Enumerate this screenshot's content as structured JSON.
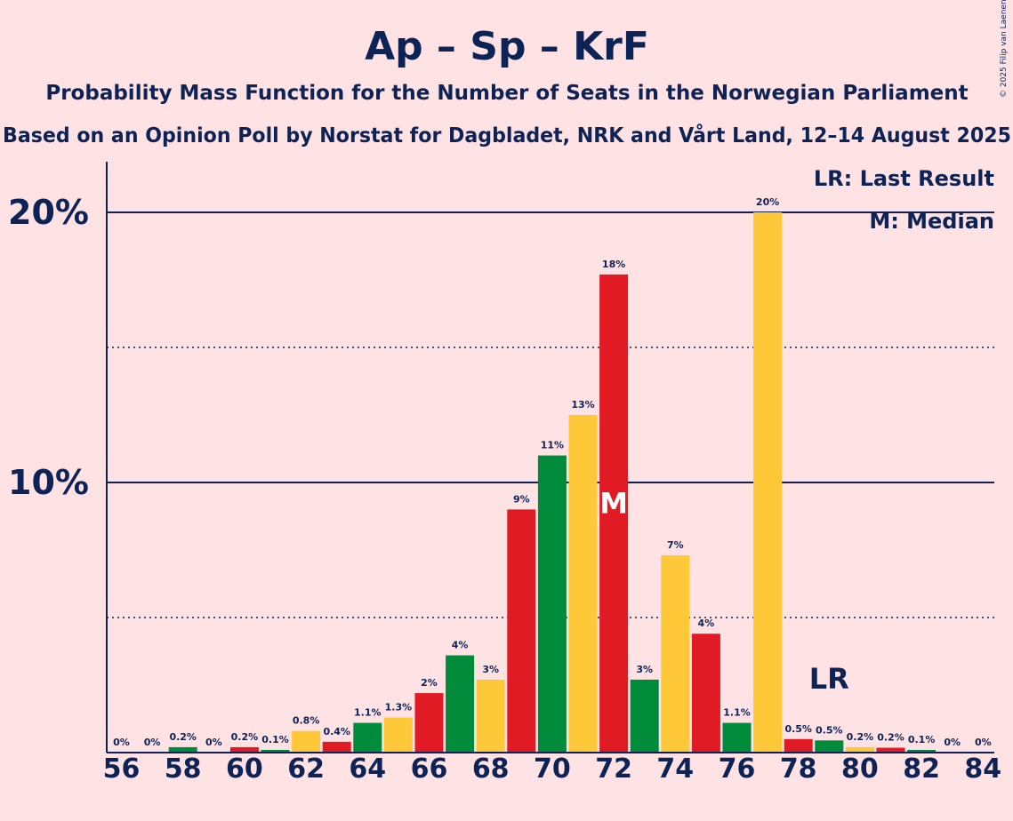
{
  "chart_data": {
    "type": "bar",
    "title": "Ap – Sp – KrF",
    "subtitle_1": "Probability Mass Function for the Number of Seats in the Norwegian Parliament",
    "subtitle_2": "Based on an Opinion Poll by Norstat for Dagbladet, NRK and Vårt Land, 12–14 August 2025",
    "legend": {
      "lr": "LR: Last Result",
      "median": "M: Median",
      "position": "top-right"
    },
    "copyright": "© 2025 Filip van Laenen",
    "xlabel": "",
    "ylabel": "",
    "ylim": [
      0,
      22
    ],
    "y_ticks": [
      {
        "value": 10,
        "label": "10%"
      },
      {
        "value": 20,
        "label": "20%"
      }
    ],
    "y_dotted": [
      5,
      15
    ],
    "x_tick_labels": [
      "56",
      "58",
      "60",
      "62",
      "64",
      "66",
      "68",
      "70",
      "72",
      "74",
      "76",
      "78",
      "80",
      "82",
      "84"
    ],
    "x_tick_values": [
      56,
      58,
      60,
      62,
      64,
      66,
      68,
      70,
      72,
      74,
      76,
      78,
      80,
      82,
      84
    ],
    "median_seat": 72,
    "median_marker": "M",
    "last_result_seat": 79,
    "last_result_marker": "LR",
    "bars": [
      {
        "seat": 56,
        "value": 0.0,
        "label": "0%"
      },
      {
        "seat": 57,
        "value": 0.0,
        "label": "0%"
      },
      {
        "seat": 58,
        "value": 0.2,
        "label": "0.2%"
      },
      {
        "seat": 59,
        "value": 0.0,
        "label": "0%"
      },
      {
        "seat": 60,
        "value": 0.2,
        "label": "0.2%"
      },
      {
        "seat": 61,
        "value": 0.1,
        "label": "0.1%"
      },
      {
        "seat": 62,
        "value": 0.8,
        "label": "0.8%"
      },
      {
        "seat": 63,
        "value": 0.4,
        "label": "0.4%"
      },
      {
        "seat": 64,
        "value": 1.1,
        "label": "1.1%"
      },
      {
        "seat": 65,
        "value": 1.3,
        "label": "1.3%"
      },
      {
        "seat": 66,
        "value": 2.2,
        "label": "2%"
      },
      {
        "seat": 67,
        "value": 3.6,
        "label": "4%"
      },
      {
        "seat": 68,
        "value": 2.7,
        "label": "3%"
      },
      {
        "seat": 69,
        "value": 9.0,
        "label": "9%"
      },
      {
        "seat": 70,
        "value": 11.0,
        "label": "11%"
      },
      {
        "seat": 71,
        "value": 12.5,
        "label": "13%"
      },
      {
        "seat": 72,
        "value": 17.7,
        "label": "18%"
      },
      {
        "seat": 73,
        "value": 2.7,
        "label": "3%"
      },
      {
        "seat": 74,
        "value": 7.3,
        "label": "7%"
      },
      {
        "seat": 75,
        "value": 4.4,
        "label": "4%"
      },
      {
        "seat": 76,
        "value": 1.1,
        "label": "1.1%"
      },
      {
        "seat": 77,
        "value": 20.0,
        "label": "20%"
      },
      {
        "seat": 78,
        "value": 0.5,
        "label": "0.5%"
      },
      {
        "seat": 79,
        "value": 0.45,
        "label": "0.5%"
      },
      {
        "seat": 80,
        "value": 0.2,
        "label": "0.2%"
      },
      {
        "seat": 81,
        "value": 0.18,
        "label": "0.2%"
      },
      {
        "seat": 82,
        "value": 0.1,
        "label": "0.1%"
      },
      {
        "seat": 83,
        "value": 0.0,
        "label": "0%"
      },
      {
        "seat": 84,
        "value": 0.0,
        "label": "0%"
      }
    ],
    "colors": {
      "background": "#ffe2e4",
      "text": "#0d2255",
      "bar_palette": [
        "#e01b24",
        "#008b3a",
        "#ffc838"
      ],
      "median_marker": "#ffffff"
    }
  }
}
